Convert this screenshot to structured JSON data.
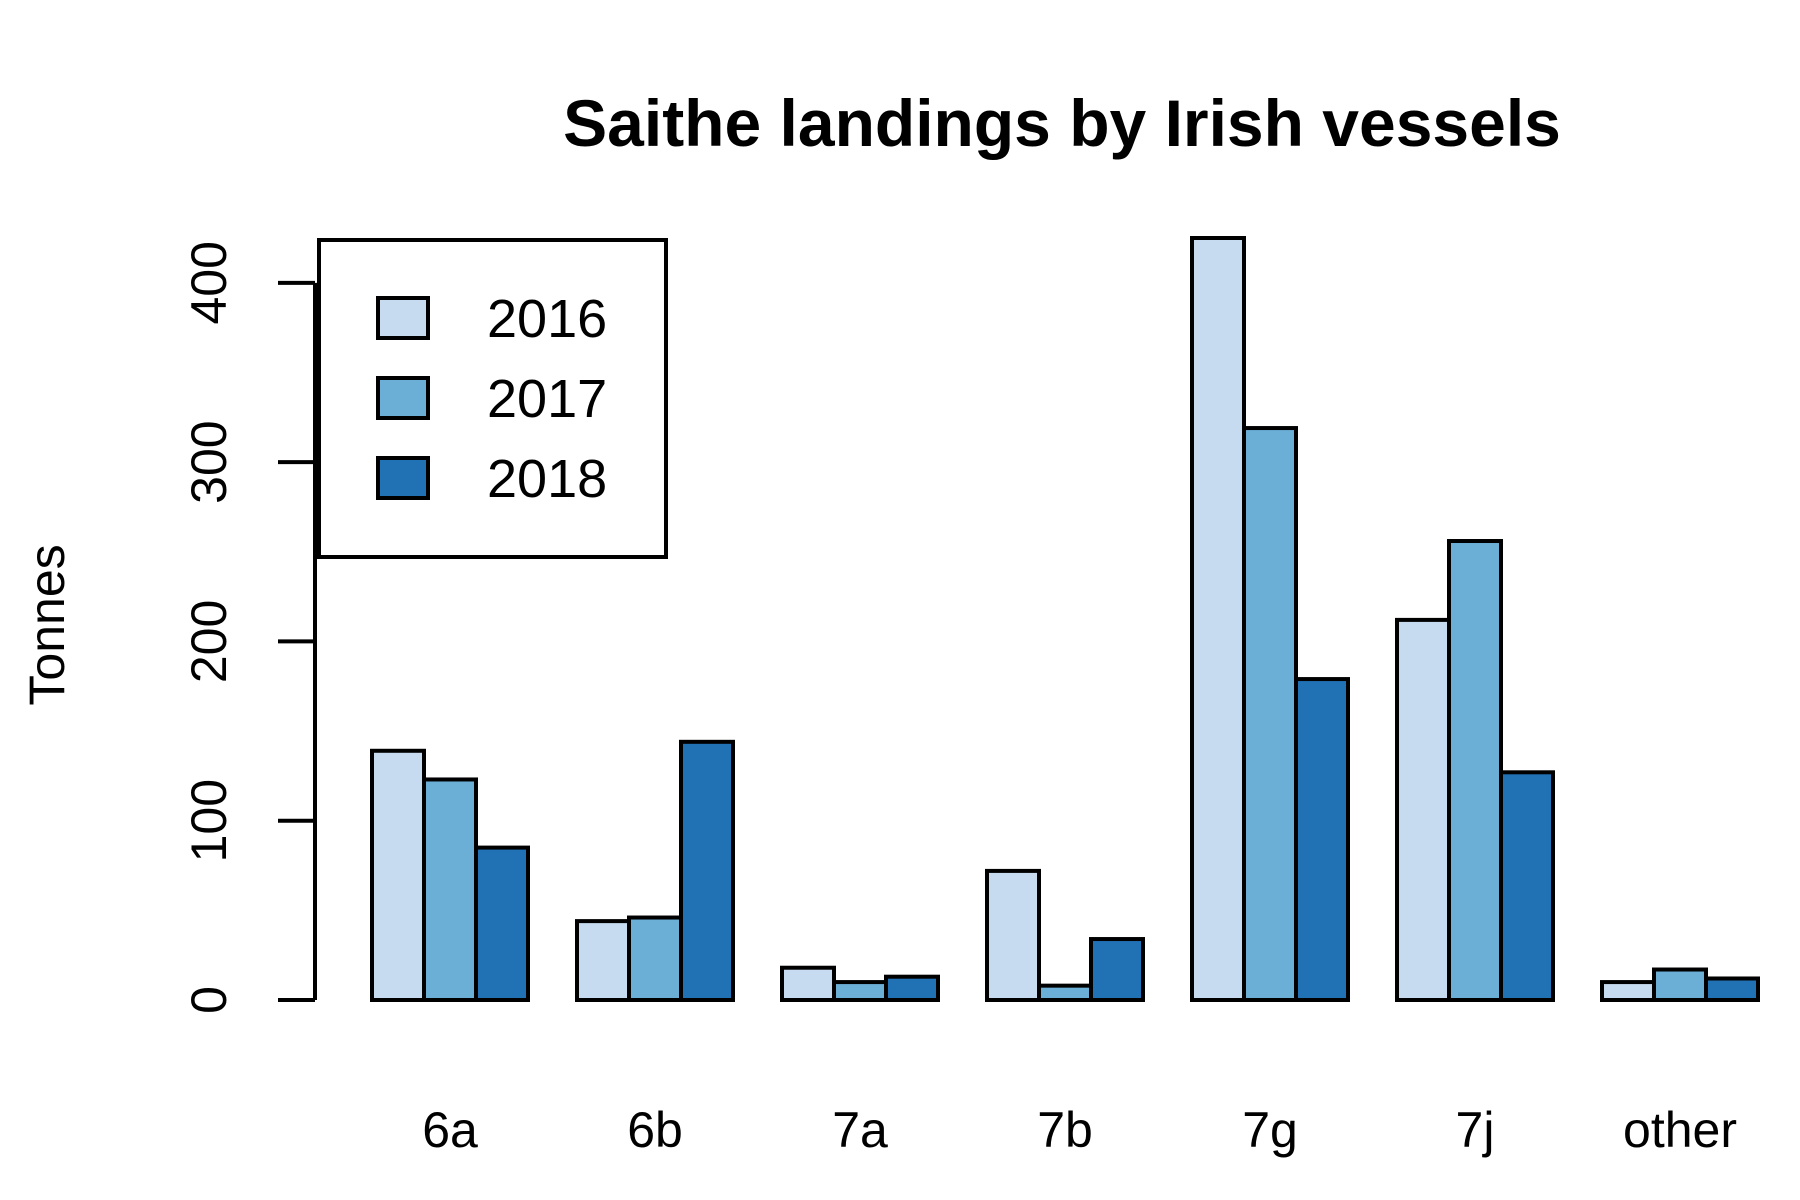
{
  "chart_data": {
    "type": "bar",
    "title": "Saithe landings by Irish vessels",
    "xlabel": "",
    "ylabel": "Tonnes",
    "categories": [
      "6a",
      "6b",
      "7a",
      "7b",
      "7g",
      "7j",
      "other"
    ],
    "series": [
      {
        "name": "2016",
        "color": "#C6DBEF",
        "values": [
          139,
          44,
          18,
          72,
          425,
          212,
          10
        ]
      },
      {
        "name": "2017",
        "color": "#6BAED6",
        "values": [
          123,
          46,
          10,
          8,
          319,
          256,
          17
        ]
      },
      {
        "name": "2018",
        "color": "#2171B5",
        "values": [
          85,
          144,
          13,
          34,
          179,
          127,
          12
        ]
      }
    ],
    "ylim": [
      0,
      425
    ],
    "yticks": [
      0,
      100,
      200,
      300,
      400
    ],
    "grid": false,
    "legend_position": "top-left"
  }
}
